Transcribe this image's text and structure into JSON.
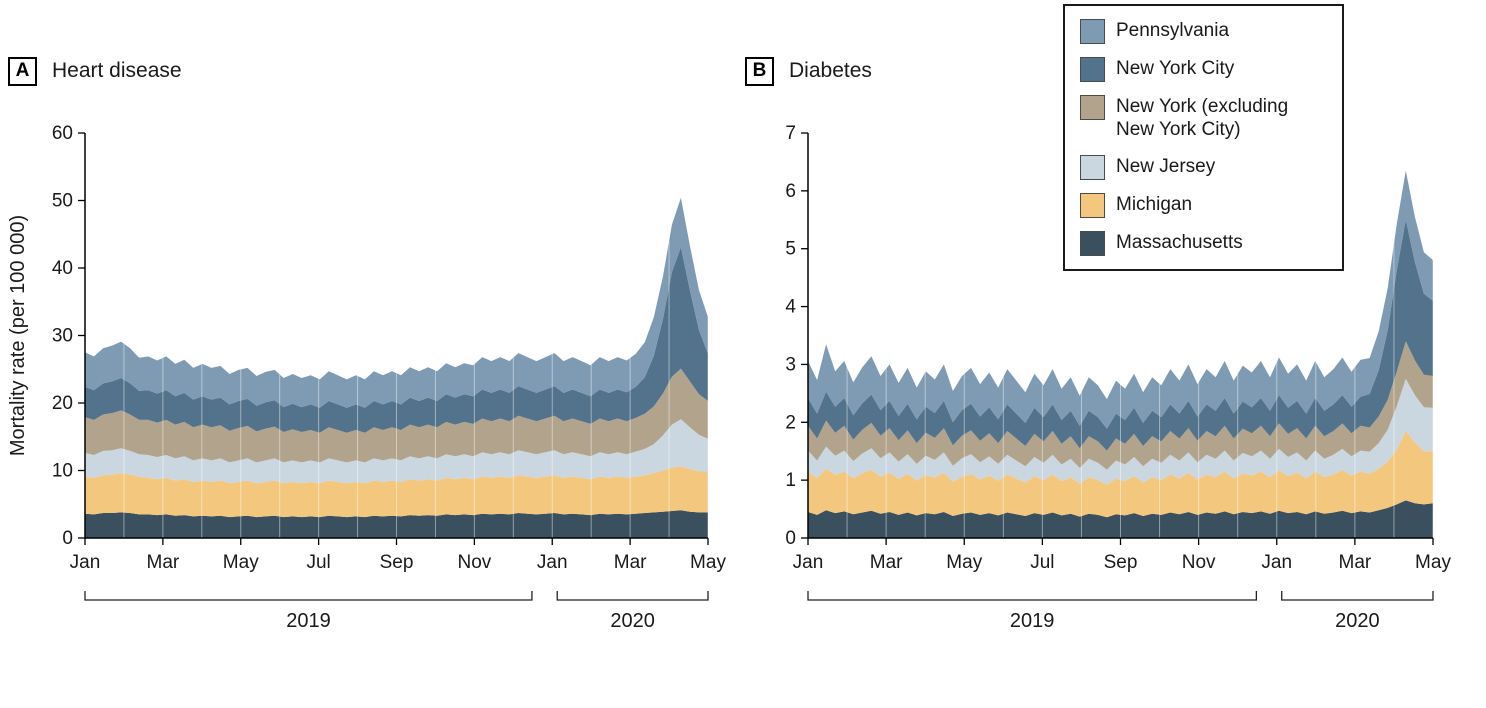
{
  "figure": {
    "legend": {
      "items": [
        {
          "label": "Pennsylvania",
          "color": "#7E9BB3"
        },
        {
          "label": "New York City",
          "color": "#53738C"
        },
        {
          "label": "New York (excluding New York City)",
          "color": "#B2A38C"
        },
        {
          "label": "New Jersey",
          "color": "#CAD7E0"
        },
        {
          "label": "Michigan",
          "color": "#F3C77E"
        },
        {
          "label": "Massachusetts",
          "color": "#3A505F"
        }
      ]
    }
  },
  "chart_data": [
    {
      "type": "area",
      "stacked": true,
      "panel_label": "A",
      "title": "Heart disease",
      "ylabel": "Mortality rate (per 100 000)",
      "ylim": [
        0,
        60
      ],
      "yticks": [
        0,
        10,
        20,
        30,
        40,
        50,
        60
      ],
      "x_unit": "weeks from Jan 2019 to May 2020",
      "x_count": 70,
      "xticks": [
        {
          "pos": 0,
          "label": "Jan"
        },
        {
          "pos": 8.625,
          "label": "Mar"
        },
        {
          "pos": 17.25,
          "label": "May"
        },
        {
          "pos": 25.875,
          "label": "Jul"
        },
        {
          "pos": 34.5,
          "label": "Sep"
        },
        {
          "pos": 43.125,
          "label": "Nov"
        },
        {
          "pos": 51.75,
          "label": "Jan"
        },
        {
          "pos": 60.375,
          "label": "Mar"
        },
        {
          "pos": 69,
          "label": "May"
        }
      ],
      "month_gridlines": [
        0,
        4.3125,
        8.625,
        12.9375,
        17.25,
        21.5625,
        25.875,
        30.1875,
        34.5,
        38.8125,
        43.125,
        47.4375,
        51.75,
        56.0625,
        60.375,
        64.6875,
        69
      ],
      "year_brackets": [
        {
          "label": "2019",
          "from": 0,
          "to": 49.5
        },
        {
          "label": "2020",
          "from": 52.3,
          "to": 69
        }
      ],
      "legend_position": "top-right",
      "grid": false,
      "series": [
        {
          "name": "Massachusetts",
          "color": "#3A505F",
          "values": [
            3.6,
            3.5,
            3.7,
            3.7,
            3.8,
            3.7,
            3.5,
            3.5,
            3.4,
            3.5,
            3.3,
            3.4,
            3.2,
            3.3,
            3.2,
            3.3,
            3.1,
            3.2,
            3.3,
            3.1,
            3.2,
            3.3,
            3.1,
            3.2,
            3.1,
            3.2,
            3.1,
            3.3,
            3.2,
            3.1,
            3.2,
            3.1,
            3.3,
            3.2,
            3.3,
            3.2,
            3.4,
            3.3,
            3.4,
            3.3,
            3.5,
            3.4,
            3.5,
            3.4,
            3.6,
            3.5,
            3.6,
            3.5,
            3.7,
            3.6,
            3.5,
            3.6,
            3.7,
            3.5,
            3.6,
            3.5,
            3.4,
            3.6,
            3.5,
            3.6,
            3.5,
            3.6,
            3.7,
            3.8,
            3.9,
            4.0,
            4.1,
            3.9,
            3.8,
            3.8
          ]
        },
        {
          "name": "Michigan",
          "color": "#F3C77E",
          "values": [
            5.5,
            5.4,
            5.6,
            5.7,
            5.8,
            5.7,
            5.6,
            5.4,
            5.3,
            5.4,
            5.2,
            5.3,
            5.1,
            5.2,
            5.1,
            5.2,
            5.0,
            5.1,
            5.2,
            5.0,
            5.1,
            5.2,
            5.0,
            5.1,
            5.0,
            5.1,
            5.0,
            5.2,
            5.1,
            5.0,
            5.1,
            5.0,
            5.2,
            5.1,
            5.2,
            5.1,
            5.3,
            5.2,
            5.3,
            5.2,
            5.4,
            5.3,
            5.4,
            5.3,
            5.5,
            5.4,
            5.5,
            5.4,
            5.6,
            5.5,
            5.4,
            5.5,
            5.6,
            5.4,
            5.5,
            5.4,
            5.3,
            5.5,
            5.4,
            5.5,
            5.4,
            5.5,
            5.6,
            5.8,
            6.1,
            6.4,
            6.5,
            6.3,
            6.1,
            6.0
          ]
        },
        {
          "name": "New Jersey",
          "color": "#CAD7E0",
          "values": [
            3.5,
            3.4,
            3.6,
            3.6,
            3.7,
            3.5,
            3.3,
            3.4,
            3.3,
            3.4,
            3.3,
            3.4,
            3.2,
            3.3,
            3.2,
            3.3,
            3.1,
            3.2,
            3.3,
            3.1,
            3.2,
            3.3,
            3.1,
            3.2,
            3.1,
            3.2,
            3.1,
            3.3,
            3.2,
            3.1,
            3.2,
            3.1,
            3.3,
            3.2,
            3.3,
            3.2,
            3.4,
            3.3,
            3.4,
            3.3,
            3.5,
            3.4,
            3.5,
            3.4,
            3.6,
            3.5,
            3.6,
            3.5,
            3.7,
            3.6,
            3.5,
            3.6,
            3.7,
            3.5,
            3.6,
            3.5,
            3.4,
            3.6,
            3.5,
            3.6,
            3.5,
            3.7,
            3.9,
            4.3,
            5.2,
            6.4,
            7.0,
            6.2,
            5.4,
            4.9
          ]
        },
        {
          "name": "New York (excluding New York City)",
          "color": "#B2A38C",
          "values": [
            5.3,
            5.2,
            5.4,
            5.5,
            5.6,
            5.4,
            5.1,
            5.2,
            5.1,
            5.2,
            5.0,
            5.1,
            4.9,
            5.0,
            4.9,
            4.9,
            4.7,
            4.8,
            4.8,
            4.6,
            4.7,
            4.7,
            4.5,
            4.6,
            4.5,
            4.5,
            4.4,
            4.6,
            4.5,
            4.4,
            4.5,
            4.4,
            4.6,
            4.5,
            4.6,
            4.5,
            4.7,
            4.6,
            4.7,
            4.6,
            4.8,
            4.7,
            4.8,
            4.8,
            5.0,
            4.9,
            5.0,
            4.9,
            5.1,
            5.0,
            4.9,
            5.0,
            5.1,
            4.9,
            5.0,
            4.9,
            4.8,
            5.0,
            4.9,
            5.0,
            4.9,
            5.0,
            5.2,
            5.6,
            6.2,
            7.1,
            7.5,
            6.8,
            6.0,
            5.6
          ]
        },
        {
          "name": "New York City",
          "color": "#53738C",
          "values": [
            4.5,
            4.4,
            4.6,
            4.7,
            4.8,
            4.6,
            4.3,
            4.4,
            4.3,
            4.4,
            4.2,
            4.3,
            4.1,
            4.2,
            4.1,
            4.1,
            3.9,
            4.0,
            4.0,
            3.8,
            3.9,
            3.9,
            3.7,
            3.8,
            3.7,
            3.8,
            3.7,
            3.9,
            3.8,
            3.7,
            3.8,
            3.7,
            3.9,
            3.8,
            3.9,
            3.8,
            4.0,
            3.9,
            4.0,
            3.9,
            4.1,
            4.0,
            4.1,
            4.1,
            4.3,
            4.2,
            4.3,
            4.2,
            4.4,
            4.3,
            4.2,
            4.3,
            4.4,
            4.2,
            4.3,
            4.2,
            4.1,
            4.3,
            4.2,
            4.3,
            4.3,
            4.6,
            5.4,
            7.5,
            11.0,
            15.5,
            18.0,
            13.5,
            9.5,
            7.0
          ]
        },
        {
          "name": "Pennsylvania",
          "color": "#7E9BB3",
          "values": [
            5.1,
            5.0,
            5.2,
            5.3,
            5.4,
            5.2,
            4.9,
            5.0,
            4.9,
            5.0,
            4.8,
            4.9,
            4.7,
            4.8,
            4.7,
            4.7,
            4.5,
            4.6,
            4.6,
            4.4,
            4.5,
            4.5,
            4.3,
            4.4,
            4.3,
            4.3,
            4.2,
            4.4,
            4.3,
            4.2,
            4.3,
            4.2,
            4.4,
            4.3,
            4.4,
            4.3,
            4.5,
            4.4,
            4.5,
            4.4,
            4.6,
            4.5,
            4.6,
            4.6,
            4.8,
            4.7,
            4.8,
            4.7,
            4.9,
            4.8,
            4.7,
            4.8,
            4.9,
            4.7,
            4.8,
            4.7,
            4.6,
            4.8,
            4.7,
            4.8,
            4.7,
            4.9,
            5.2,
            5.7,
            6.3,
            7.0,
            7.3,
            6.6,
            5.9,
            5.4
          ]
        }
      ]
    },
    {
      "type": "area",
      "stacked": true,
      "panel_label": "B",
      "title": "Diabetes",
      "ylabel": "",
      "ylim": [
        0,
        7
      ],
      "yticks": [
        0,
        1,
        2,
        3,
        4,
        5,
        6,
        7
      ],
      "x_unit": "weeks from Jan 2019 to May 2020",
      "x_count": 70,
      "xticks": [
        {
          "pos": 0,
          "label": "Jan"
        },
        {
          "pos": 8.625,
          "label": "Mar"
        },
        {
          "pos": 17.25,
          "label": "May"
        },
        {
          "pos": 25.875,
          "label": "Jul"
        },
        {
          "pos": 34.5,
          "label": "Sep"
        },
        {
          "pos": 43.125,
          "label": "Nov"
        },
        {
          "pos": 51.75,
          "label": "Jan"
        },
        {
          "pos": 60.375,
          "label": "Mar"
        },
        {
          "pos": 69,
          "label": "May"
        }
      ],
      "month_gridlines": [
        0,
        4.3125,
        8.625,
        12.9375,
        17.25,
        21.5625,
        25.875,
        30.1875,
        34.5,
        38.8125,
        43.125,
        47.4375,
        51.75,
        56.0625,
        60.375,
        64.6875,
        69
      ],
      "year_brackets": [
        {
          "label": "2019",
          "from": 0,
          "to": 49.5
        },
        {
          "label": "2020",
          "from": 52.3,
          "to": 69
        }
      ],
      "grid": false,
      "series": [
        {
          "name": "Massachusetts",
          "color": "#3A505F",
          "values": [
            0.45,
            0.4,
            0.48,
            0.43,
            0.46,
            0.41,
            0.44,
            0.47,
            0.42,
            0.45,
            0.4,
            0.44,
            0.39,
            0.43,
            0.41,
            0.45,
            0.38,
            0.42,
            0.44,
            0.4,
            0.43,
            0.39,
            0.44,
            0.41,
            0.38,
            0.43,
            0.4,
            0.44,
            0.39,
            0.42,
            0.37,
            0.42,
            0.4,
            0.36,
            0.41,
            0.39,
            0.43,
            0.38,
            0.42,
            0.4,
            0.44,
            0.41,
            0.45,
            0.4,
            0.44,
            0.42,
            0.46,
            0.41,
            0.45,
            0.43,
            0.46,
            0.42,
            0.47,
            0.43,
            0.45,
            0.41,
            0.46,
            0.42,
            0.44,
            0.47,
            0.43,
            0.46,
            0.44,
            0.48,
            0.52,
            0.58,
            0.65,
            0.6,
            0.58,
            0.6
          ]
        },
        {
          "name": "Michigan",
          "color": "#F3C77E",
          "values": [
            0.7,
            0.63,
            0.72,
            0.66,
            0.69,
            0.62,
            0.68,
            0.71,
            0.64,
            0.68,
            0.62,
            0.67,
            0.6,
            0.66,
            0.63,
            0.68,
            0.59,
            0.64,
            0.67,
            0.61,
            0.65,
            0.6,
            0.66,
            0.62,
            0.58,
            0.64,
            0.6,
            0.66,
            0.59,
            0.63,
            0.57,
            0.63,
            0.6,
            0.56,
            0.62,
            0.59,
            0.64,
            0.58,
            0.63,
            0.6,
            0.66,
            0.62,
            0.68,
            0.61,
            0.66,
            0.63,
            0.69,
            0.62,
            0.67,
            0.65,
            0.69,
            0.63,
            0.7,
            0.64,
            0.68,
            0.62,
            0.69,
            0.63,
            0.66,
            0.7,
            0.65,
            0.69,
            0.67,
            0.72,
            0.8,
            0.95,
            1.2,
            1.05,
            0.92,
            0.9
          ]
        },
        {
          "name": "New Jersey",
          "color": "#CAD7E0",
          "values": [
            0.36,
            0.31,
            0.38,
            0.33,
            0.36,
            0.3,
            0.34,
            0.37,
            0.32,
            0.35,
            0.3,
            0.34,
            0.29,
            0.33,
            0.31,
            0.35,
            0.28,
            0.32,
            0.34,
            0.3,
            0.33,
            0.29,
            0.34,
            0.31,
            0.28,
            0.33,
            0.3,
            0.34,
            0.29,
            0.32,
            0.27,
            0.32,
            0.3,
            0.26,
            0.31,
            0.29,
            0.33,
            0.28,
            0.32,
            0.3,
            0.34,
            0.31,
            0.35,
            0.3,
            0.34,
            0.32,
            0.36,
            0.31,
            0.35,
            0.33,
            0.36,
            0.32,
            0.37,
            0.33,
            0.35,
            0.31,
            0.36,
            0.32,
            0.34,
            0.37,
            0.33,
            0.36,
            0.38,
            0.44,
            0.55,
            0.75,
            0.9,
            0.82,
            0.76,
            0.75
          ]
        },
        {
          "name": "New York (excluding New York City)",
          "color": "#B2A38C",
          "values": [
            0.43,
            0.38,
            0.45,
            0.4,
            0.43,
            0.37,
            0.41,
            0.44,
            0.39,
            0.42,
            0.37,
            0.41,
            0.36,
            0.4,
            0.38,
            0.42,
            0.35,
            0.39,
            0.41,
            0.37,
            0.4,
            0.36,
            0.41,
            0.38,
            0.35,
            0.4,
            0.37,
            0.41,
            0.36,
            0.39,
            0.34,
            0.39,
            0.37,
            0.33,
            0.38,
            0.36,
            0.4,
            0.35,
            0.39,
            0.37,
            0.41,
            0.38,
            0.42,
            0.37,
            0.41,
            0.39,
            0.43,
            0.38,
            0.42,
            0.4,
            0.43,
            0.39,
            0.44,
            0.4,
            0.42,
            0.38,
            0.43,
            0.39,
            0.41,
            0.44,
            0.4,
            0.43,
            0.42,
            0.46,
            0.52,
            0.6,
            0.65,
            0.6,
            0.56,
            0.55
          ]
        },
        {
          "name": "New York City",
          "color": "#53738C",
          "values": [
            0.48,
            0.43,
            0.5,
            0.45,
            0.48,
            0.42,
            0.46,
            0.49,
            0.44,
            0.47,
            0.42,
            0.46,
            0.41,
            0.45,
            0.43,
            0.47,
            0.4,
            0.44,
            0.46,
            0.42,
            0.45,
            0.41,
            0.46,
            0.43,
            0.4,
            0.45,
            0.42,
            0.46,
            0.41,
            0.44,
            0.39,
            0.44,
            0.42,
            0.38,
            0.43,
            0.41,
            0.45,
            0.4,
            0.44,
            0.42,
            0.46,
            0.43,
            0.47,
            0.42,
            0.46,
            0.44,
            0.48,
            0.43,
            0.47,
            0.45,
            0.48,
            0.44,
            0.49,
            0.45,
            0.47,
            0.43,
            0.48,
            0.44,
            0.46,
            0.49,
            0.46,
            0.5,
            0.58,
            0.8,
            1.2,
            1.75,
            2.1,
            1.7,
            1.4,
            1.3
          ]
        },
        {
          "name": "Pennsylvania",
          "color": "#7E9BB3",
          "values": [
            0.64,
            0.58,
            0.82,
            0.61,
            0.64,
            0.57,
            0.62,
            0.66,
            0.59,
            0.63,
            0.57,
            0.62,
            0.55,
            0.61,
            0.58,
            0.63,
            0.54,
            0.59,
            0.62,
            0.56,
            0.6,
            0.55,
            0.61,
            0.57,
            0.53,
            0.59,
            0.55,
            0.61,
            0.54,
            0.58,
            0.52,
            0.58,
            0.55,
            0.51,
            0.57,
            0.54,
            0.59,
            0.53,
            0.58,
            0.55,
            0.61,
            0.57,
            0.63,
            0.56,
            0.61,
            0.58,
            0.64,
            0.57,
            0.62,
            0.6,
            0.64,
            0.58,
            0.65,
            0.59,
            0.63,
            0.57,
            0.64,
            0.58,
            0.61,
            0.65,
            0.6,
            0.64,
            0.62,
            0.67,
            0.73,
            0.8,
            0.85,
            0.78,
            0.72,
            0.7
          ]
        }
      ]
    }
  ]
}
